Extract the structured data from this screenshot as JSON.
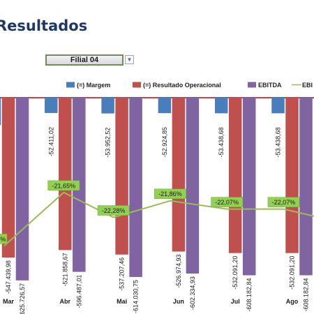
{
  "page": {
    "title": "Resultados"
  },
  "filter": {
    "selected": "Filial 04",
    "dropdown_icon": "▼"
  },
  "chart_data": {
    "type": "bar",
    "categories": [
      "Mar",
      "Abr",
      "Mai",
      "Jun",
      "Jul",
      "Ago"
    ],
    "series": [
      {
        "name": "(=) Margem",
        "color": "#4a7ebb",
        "values": [
          -94000,
          -52411.02,
          -53952.52,
          -52924.85,
          -53438.68,
          -53438.68
        ],
        "labels": [
          "",
          "-52.411,02",
          "-53.952,52",
          "-52.924,85",
          "-53.438,68",
          "-53.438,68"
        ]
      },
      {
        "name": "(=) Resultado Operacional",
        "color": "#c0504d",
        "values": [
          -547439.98,
          -521858.67,
          -537207.46,
          -526974.93,
          -532091.2,
          -532091.2
        ],
        "labels": [
          "-547.439,98",
          "-521.858,67",
          "-537.207,46",
          "-526.974,93",
          "-532.091,20",
          "-532.091,20"
        ]
      },
      {
        "name": "EBITDA",
        "color": "#8064a2",
        "values": [
          -625726.57,
          -596487.01,
          -614030.75,
          -602334.93,
          -608182.84,
          -608182.84
        ],
        "labels": [
          "-625.726,57",
          "-596.487,01",
          "-614.030,75",
          "-602.334,93",
          "-608.182,84",
          "-608.182,84"
        ]
      },
      {
        "name": "EBI",
        "type": "line",
        "color": "#9bbb59",
        "values": [
          -23.0,
          -21.65,
          -22.28,
          -21.86,
          -22.07,
          -22.07
        ],
        "labels": [
          "%",
          "-21,65%",
          "-22,28%",
          "-21,86%",
          "-22,07%",
          "-22,07%"
        ]
      }
    ],
    "ylim": [
      -650000,
      0
    ],
    "legend": "top"
  }
}
